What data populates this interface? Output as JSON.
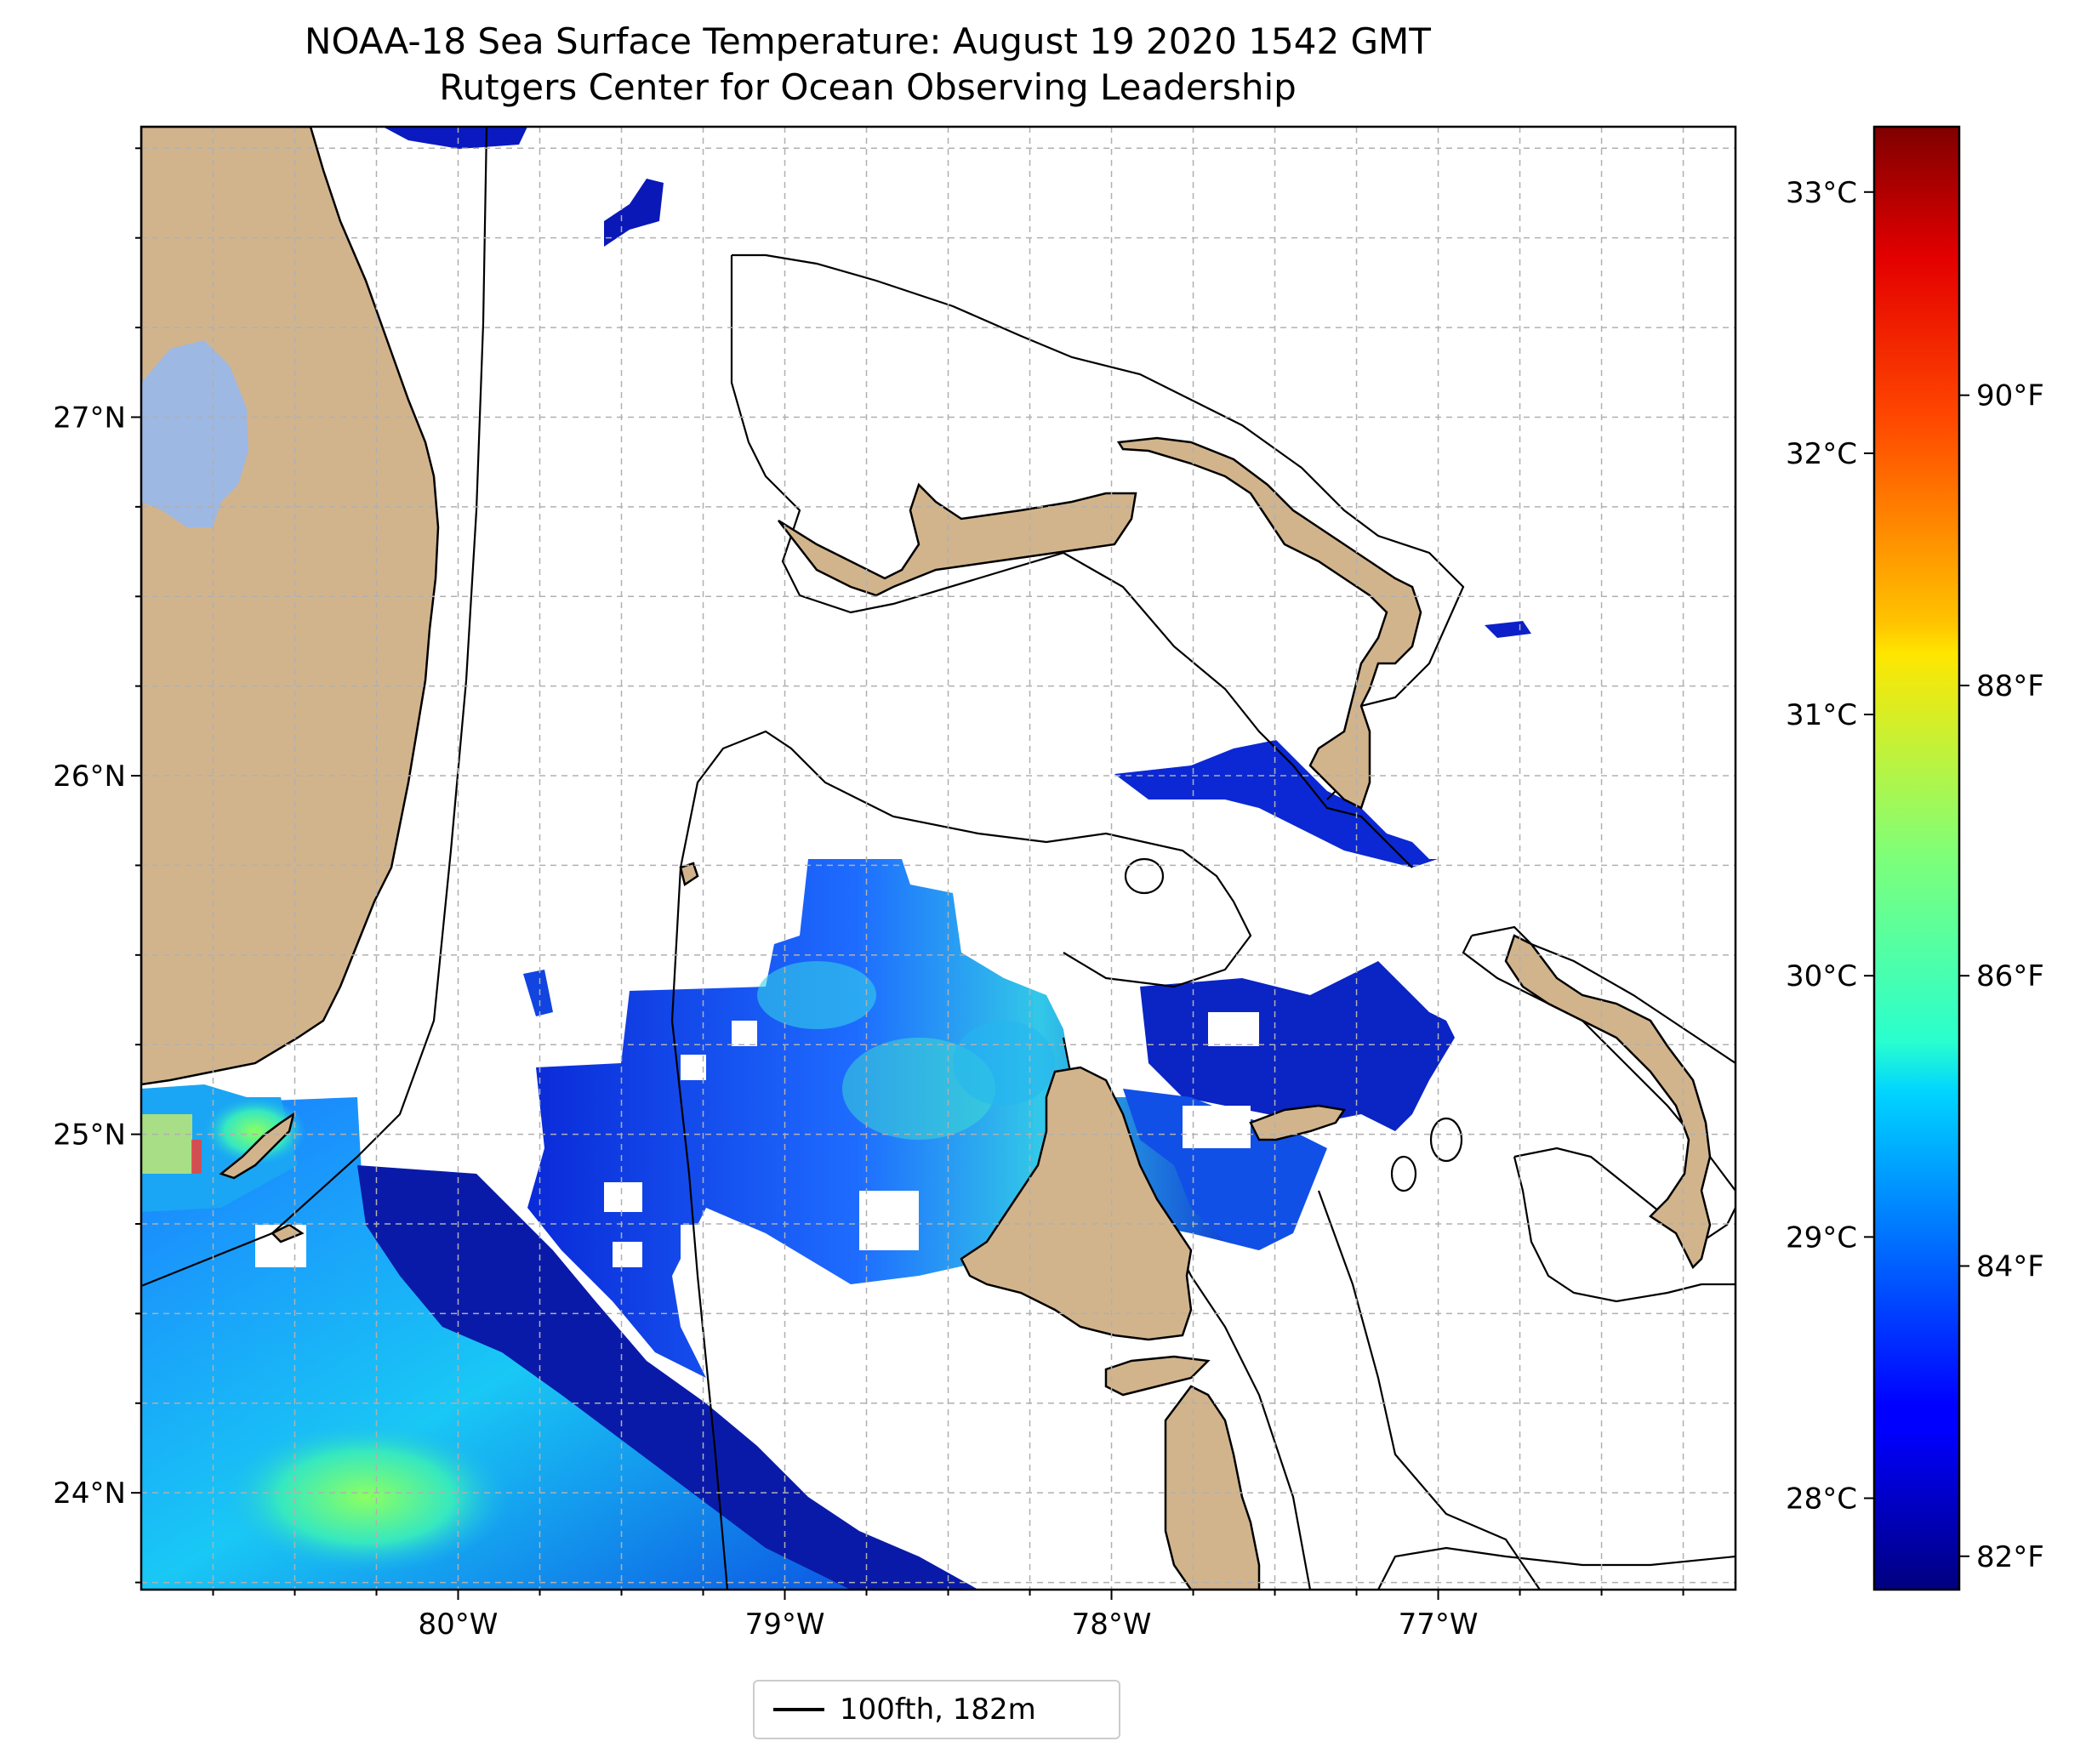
{
  "title": "NOAA-18 Sea Surface Temperature: August 19 2020 1542 GMT",
  "subtitle": "Rutgers Center for Ocean Observing Leadership",
  "map": {
    "lon_range": [
      -80.97,
      -76.09
    ],
    "lat_range": [
      23.73,
      27.81
    ],
    "lat_ticks": [
      {
        "value": 27,
        "label": "27°N"
      },
      {
        "value": 26,
        "label": "26°N"
      },
      {
        "value": 25,
        "label": "25°N"
      },
      {
        "value": 24,
        "label": "24°N"
      }
    ],
    "lon_ticks": [
      {
        "value": -80,
        "label": "80°W"
      },
      {
        "value": -79,
        "label": "79°W"
      },
      {
        "value": -78,
        "label": "78°W"
      },
      {
        "value": -77,
        "label": "77°W"
      }
    ],
    "grid": "dashed",
    "colors": {
      "land": "#d2b48c",
      "lake": "#9db8e3",
      "coast": "#000000"
    }
  },
  "colorbar": {
    "colormap": "jet",
    "range_c": [
      27.65,
      33.25
    ],
    "celsius_ticks": [
      {
        "value": 28,
        "label": "28°C"
      },
      {
        "value": 29,
        "label": "29°C"
      },
      {
        "value": 30,
        "label": "30°C"
      },
      {
        "value": 31,
        "label": "31°C"
      },
      {
        "value": 32,
        "label": "32°C"
      },
      {
        "value": 33,
        "label": "33°C"
      }
    ],
    "fahrenheit_ticks": [
      {
        "value": 82,
        "label": "82°F"
      },
      {
        "value": 84,
        "label": "84°F"
      },
      {
        "value": 86,
        "label": "86°F"
      },
      {
        "value": 88,
        "label": "88°F"
      },
      {
        "value": 90,
        "label": "90°F"
      }
    ]
  },
  "legend": {
    "label": "100fth, 182m"
  }
}
